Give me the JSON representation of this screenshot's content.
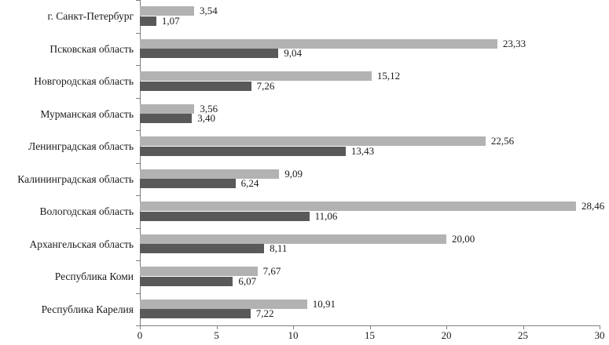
{
  "chart_data": {
    "type": "bar",
    "orientation": "horizontal",
    "title": "",
    "xlabel": "",
    "ylabel": "",
    "grid": false,
    "legend": false,
    "xlim": [
      0,
      30
    ],
    "x_ticks": [
      0,
      5,
      10,
      15,
      20,
      25,
      30
    ],
    "x_tick_labels": [
      "0",
      "5",
      "10",
      "15",
      "20",
      "25",
      "30"
    ],
    "categories": [
      "г. Санкт-Петербург",
      "Псковская область",
      "Новгородская область",
      "Мурманская область",
      "Ленинградская область",
      "Калининградская область",
      "Вологодская область",
      "Архангельская область",
      "Республика Коми",
      "Республика Карелия"
    ],
    "series": [
      {
        "name": "series-light-gray",
        "color": "#b2b2b2",
        "values": [
          3.54,
          23.33,
          15.12,
          3.56,
          22.56,
          9.09,
          28.46,
          20.0,
          7.67,
          10.91
        ],
        "value_labels": [
          "3,54",
          "23,33",
          "15,12",
          "3,56",
          "22,56",
          "9,09",
          "28,46",
          "20,00",
          "7,67",
          "10,91"
        ]
      },
      {
        "name": "series-dark-gray",
        "color": "#595959",
        "values": [
          1.07,
          9.04,
          7.26,
          3.4,
          13.43,
          6.24,
          11.06,
          8.11,
          6.07,
          7.22
        ],
        "value_labels": [
          "1,07",
          "9,04",
          "7,26",
          "3,40",
          "13,43",
          "6,24",
          "11,06",
          "8,11",
          "6,07",
          "7,22"
        ]
      }
    ],
    "colors": {
      "axis": "#7f7f7f",
      "text": "#1a1a1a",
      "background": "#ffffff"
    }
  }
}
